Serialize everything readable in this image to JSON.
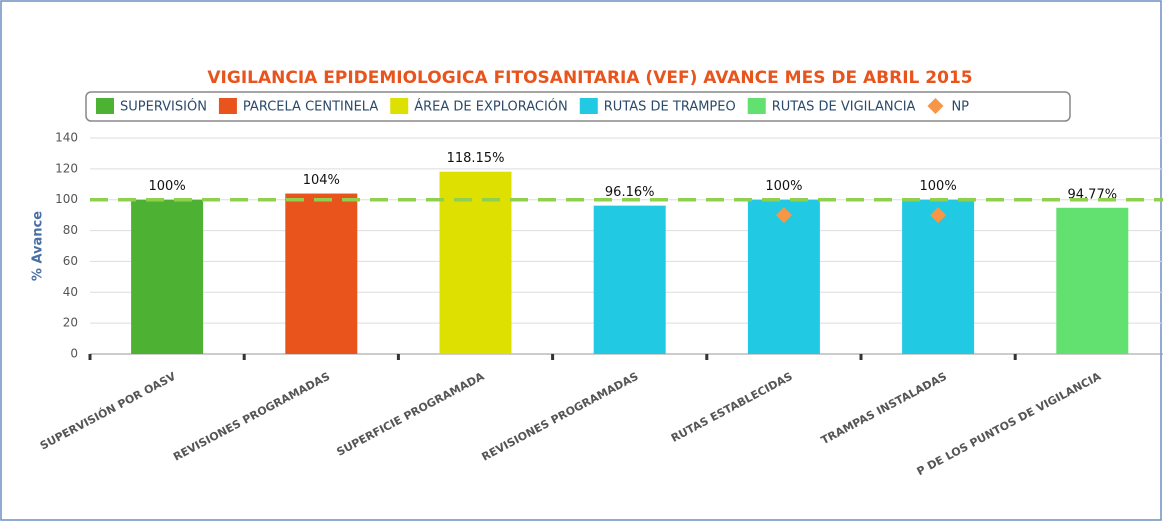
{
  "chart_data": {
    "type": "bar",
    "title": "VIGILANCIA EPIDEMIOLOGICA FITOSANITARIA (VEF) AVANCE MES DE ABRIL 2015",
    "y_label": "% Avance",
    "categories": [
      "SUPERVISIÓN POR OASV",
      "REVISIONES PROGRAMADAS",
      "SUPERFICIE PROGRAMADA",
      "REVISIONES PROGRAMADAS",
      "RUTAS ESTABLECIDAS",
      "TRAMPAS INSTALADAS",
      "P DE LOS PUNTOS DE VIGILANCIA"
    ],
    "series": [
      {
        "name": "SUPERVISIÓN",
        "color": "#4db234",
        "marker": "bar",
        "values": [
          100,
          null,
          null,
          null,
          null,
          null,
          null
        ],
        "value_labels": [
          "100%",
          null,
          null,
          null,
          null,
          null,
          null
        ]
      },
      {
        "name": "PARCELA CENTINELA",
        "color": "#e8541c",
        "marker": "bar",
        "values": [
          null,
          104,
          null,
          null,
          null,
          null,
          null
        ],
        "value_labels": [
          null,
          "104%",
          null,
          null,
          null,
          null,
          null
        ]
      },
      {
        "name": "ÁREA DE EXPLORACIÓN",
        "color": "#dde000",
        "marker": "bar",
        "values": [
          null,
          null,
          118.15,
          null,
          null,
          null,
          null
        ],
        "value_labels": [
          null,
          null,
          "118.15%",
          null,
          null,
          null,
          null
        ]
      },
      {
        "name": "RUTAS DE TRAMPEO",
        "color": "#22c9e3",
        "marker": "bar",
        "values": [
          null,
          null,
          null,
          96.16,
          100,
          100,
          null
        ],
        "value_labels": [
          null,
          null,
          null,
          "96.16%",
          "100%",
          "100%",
          null
        ]
      },
      {
        "name": "RUTAS DE VIGILANCIA",
        "color": "#62e070",
        "marker": "bar",
        "values": [
          null,
          null,
          null,
          null,
          null,
          null,
          94.77
        ],
        "value_labels": [
          null,
          null,
          null,
          null,
          null,
          null,
          "94.77%"
        ]
      },
      {
        "name": "NP",
        "color": "#f79646",
        "marker": "diamond",
        "values": [
          null,
          null,
          null,
          null,
          90,
          90,
          null
        ]
      }
    ],
    "reference_line": {
      "value": 100,
      "color": "#8fd14f"
    },
    "ylim": [
      0,
      140
    ],
    "yticks": [
      0,
      20,
      40,
      60,
      80,
      100,
      120,
      140
    ],
    "grid": true
  }
}
